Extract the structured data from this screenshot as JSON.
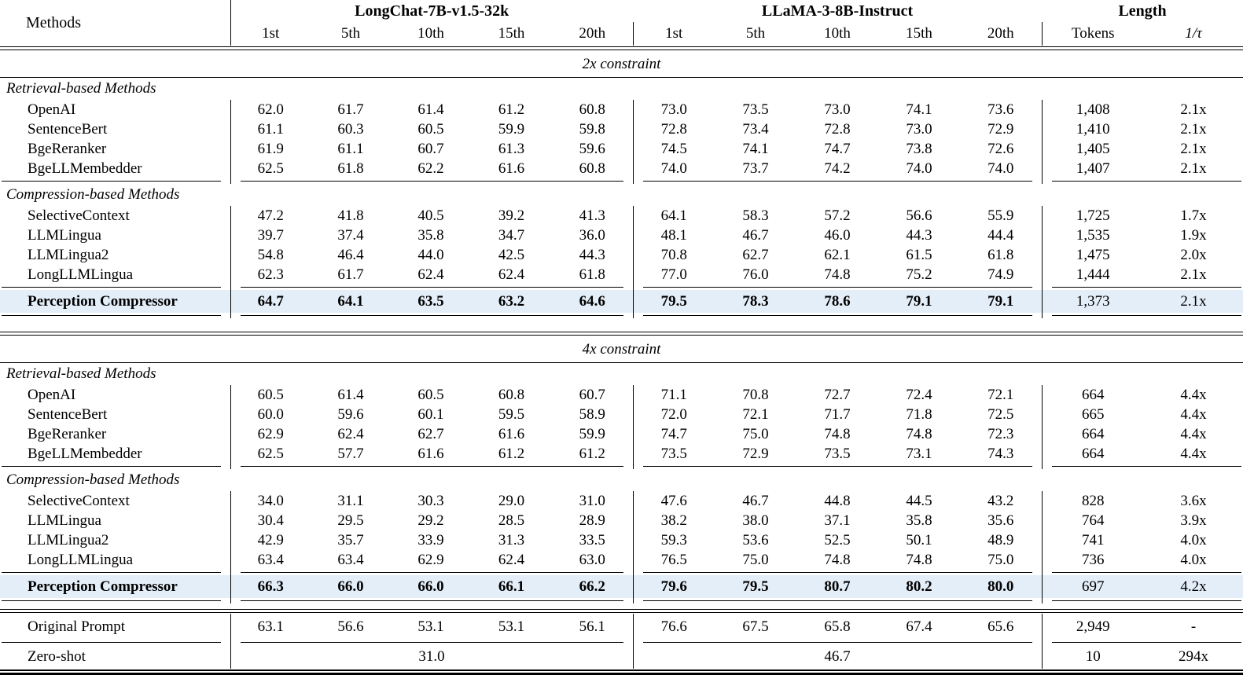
{
  "header": {
    "methods_label": "Methods",
    "groups": [
      {
        "label": "LongChat-7B-v1.5-32k",
        "cols": [
          "1st",
          "5th",
          "10th",
          "15th",
          "20th"
        ]
      },
      {
        "label": "LLaMA-3-8B-Instruct",
        "cols": [
          "1st",
          "5th",
          "10th",
          "15th",
          "20th"
        ]
      },
      {
        "label": "Length",
        "cols": [
          "Tokens",
          "1/τ"
        ]
      }
    ]
  },
  "colors": {
    "highlight_row": "#e4eef9",
    "rule": "#000000",
    "text": "#000000",
    "background": "#ffffff"
  },
  "rows": [
    {
      "type": "rule-double"
    },
    {
      "type": "banner",
      "text": "2x constraint"
    },
    {
      "type": "group",
      "text": "Retrieval-based Methods"
    },
    {
      "type": "data",
      "method": "OpenAI",
      "values": [
        "62.0",
        "61.7",
        "61.4",
        "61.2",
        "60.8",
        "73.0",
        "73.5",
        "73.0",
        "74.1",
        "73.6"
      ],
      "tokens": "1,408",
      "ratio": "2.1x"
    },
    {
      "type": "data",
      "method": "SentenceBert",
      "values": [
        "61.1",
        "60.3",
        "60.5",
        "59.9",
        "59.8",
        "72.8",
        "73.4",
        "72.8",
        "73.0",
        "72.9"
      ],
      "tokens": "1,410",
      "ratio": "2.1x"
    },
    {
      "type": "data",
      "method": "BgeReranker",
      "values": [
        "61.9",
        "61.1",
        "60.7",
        "61.3",
        "59.6",
        "74.5",
        "74.1",
        "74.7",
        "73.8",
        "72.6"
      ],
      "tokens": "1,405",
      "ratio": "2.1x"
    },
    {
      "type": "data",
      "method": "BgeLLMembedder",
      "values": [
        "62.5",
        "61.8",
        "62.2",
        "61.6",
        "60.8",
        "74.0",
        "73.7",
        "74.2",
        "74.0",
        "74.0"
      ],
      "tokens": "1,407",
      "ratio": "2.1x"
    },
    {
      "type": "rule-cmid"
    },
    {
      "type": "group",
      "text": "Compression-based Methods"
    },
    {
      "type": "data",
      "method": "SelectiveContext",
      "values": [
        "47.2",
        "41.8",
        "40.5",
        "39.2",
        "41.3",
        "64.1",
        "58.3",
        "57.2",
        "56.6",
        "55.9"
      ],
      "tokens": "1,725",
      "ratio": "1.7x"
    },
    {
      "type": "data",
      "method": "LLMLingua",
      "values": [
        "39.7",
        "37.4",
        "35.8",
        "34.7",
        "36.0",
        "48.1",
        "46.7",
        "46.0",
        "44.3",
        "44.4"
      ],
      "tokens": "1,535",
      "ratio": "1.9x"
    },
    {
      "type": "data",
      "method": "LLMLingua2",
      "values": [
        "54.8",
        "46.4",
        "44.0",
        "42.5",
        "44.3",
        "70.8",
        "62.7",
        "62.1",
        "61.5",
        "61.8"
      ],
      "tokens": "1,475",
      "ratio": "2.0x"
    },
    {
      "type": "data",
      "method": "LongLLMLingua",
      "values": [
        "62.3",
        "61.7",
        "62.4",
        "62.4",
        "61.8",
        "77.0",
        "76.0",
        "74.8",
        "75.2",
        "74.9"
      ],
      "tokens": "1,444",
      "ratio": "2.1x"
    },
    {
      "type": "rule-cmid"
    },
    {
      "type": "highlight",
      "method": "Perception Compressor",
      "values": [
        "64.7",
        "64.1",
        "63.5",
        "63.2",
        "64.6",
        "79.5",
        "78.3",
        "78.6",
        "79.1",
        "79.1"
      ],
      "tokens": "1,373",
      "ratio": "2.1x"
    },
    {
      "type": "rule-cmid"
    },
    {
      "type": "spacer"
    },
    {
      "type": "rule-double"
    },
    {
      "type": "banner",
      "text": "4x constraint"
    },
    {
      "type": "group",
      "text": "Retrieval-based Methods"
    },
    {
      "type": "data",
      "method": "OpenAI",
      "values": [
        "60.5",
        "61.4",
        "60.5",
        "60.8",
        "60.7",
        "71.1",
        "70.8",
        "72.7",
        "72.4",
        "72.1"
      ],
      "tokens": "664",
      "ratio": "4.4x"
    },
    {
      "type": "data",
      "method": "SentenceBert",
      "values": [
        "60.0",
        "59.6",
        "60.1",
        "59.5",
        "58.9",
        "72.0",
        "72.1",
        "71.7",
        "71.8",
        "72.5"
      ],
      "tokens": "665",
      "ratio": "4.4x"
    },
    {
      "type": "data",
      "method": "BgeReranker",
      "values": [
        "62.9",
        "62.4",
        "62.7",
        "61.6",
        "59.9",
        "74.7",
        "75.0",
        "74.8",
        "74.8",
        "72.3"
      ],
      "tokens": "664",
      "ratio": "4.4x"
    },
    {
      "type": "data",
      "method": "BgeLLMembedder",
      "values": [
        "62.5",
        "57.7",
        "61.6",
        "61.2",
        "61.2",
        "73.5",
        "72.9",
        "73.5",
        "73.1",
        "74.3"
      ],
      "tokens": "664",
      "ratio": "4.4x"
    },
    {
      "type": "rule-cmid"
    },
    {
      "type": "group",
      "text": "Compression-based Methods"
    },
    {
      "type": "data",
      "method": "SelectiveContext",
      "values": [
        "34.0",
        "31.1",
        "30.3",
        "29.0",
        "31.0",
        "47.6",
        "46.7",
        "44.8",
        "44.5",
        "43.2"
      ],
      "tokens": "828",
      "ratio": "3.6x"
    },
    {
      "type": "data",
      "method": "LLMLingua",
      "values": [
        "30.4",
        "29.5",
        "29.2",
        "28.5",
        "28.9",
        "38.2",
        "38.0",
        "37.1",
        "35.8",
        "35.6"
      ],
      "tokens": "764",
      "ratio": "3.9x"
    },
    {
      "type": "data",
      "method": "LLMLingua2",
      "values": [
        "42.9",
        "35.7",
        "33.9",
        "31.3",
        "33.5",
        "59.3",
        "53.6",
        "52.5",
        "50.1",
        "48.9"
      ],
      "tokens": "741",
      "ratio": "4.0x"
    },
    {
      "type": "data",
      "method": "LongLLMLingua",
      "values": [
        "63.4",
        "63.4",
        "62.9",
        "62.4",
        "63.0",
        "76.5",
        "75.0",
        "74.8",
        "74.8",
        "75.0"
      ],
      "tokens": "736",
      "ratio": "4.0x"
    },
    {
      "type": "rule-cmid"
    },
    {
      "type": "highlight",
      "method": "Perception Compressor",
      "values": [
        "66.3",
        "66.0",
        "66.0",
        "66.1",
        "66.2",
        "79.6",
        "79.5",
        "80.7",
        "80.2",
        "80.0"
      ],
      "tokens": "697",
      "ratio": "4.2x"
    },
    {
      "type": "rule-cmid"
    },
    {
      "type": "spacer-sm"
    },
    {
      "type": "rule-double"
    },
    {
      "type": "footer",
      "method": "Original Prompt",
      "values": [
        "63.1",
        "56.6",
        "53.1",
        "53.1",
        "56.1",
        "76.6",
        "67.5",
        "65.8",
        "67.4",
        "65.6"
      ],
      "tokens": "2,949",
      "ratio": "-"
    },
    {
      "type": "rule-cmid"
    },
    {
      "type": "merged",
      "method": "Zero-shot",
      "group1": "31.0",
      "group2": "46.7",
      "tokens": "10",
      "ratio": "294x"
    },
    {
      "type": "rule-bottom"
    }
  ]
}
